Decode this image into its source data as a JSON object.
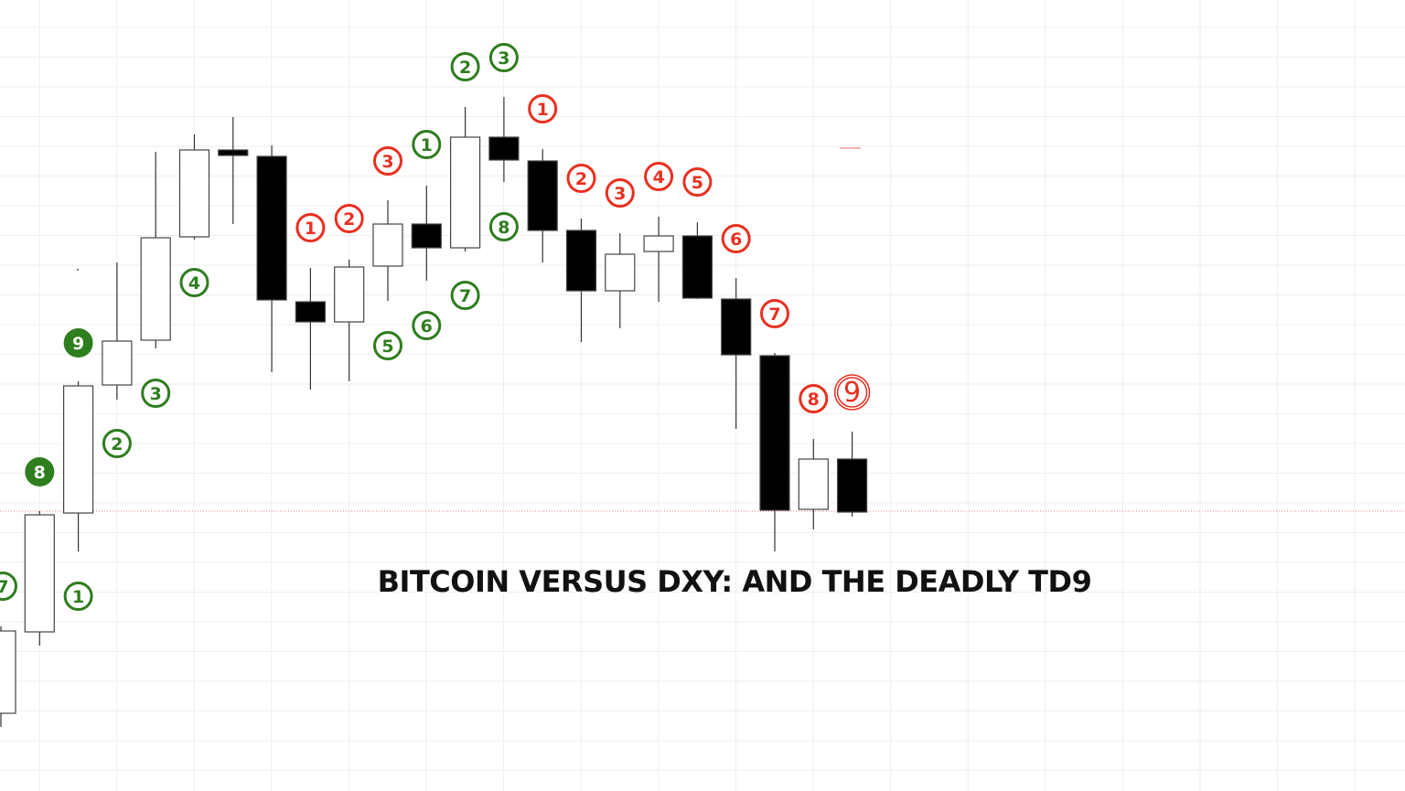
{
  "chart_data": {
    "type": "candlestick",
    "title": "BITCOIN VERSUS DXY: AND THE DEADLY TD9",
    "xlabel": "",
    "ylabel": "",
    "grid": true,
    "axes_visible": false,
    "colors": {
      "up_fill": "#ffffff",
      "down_fill": "#000000",
      "outline": "#444444",
      "buy_setup": "#2e7d1e",
      "sell_setup": "#e8301f",
      "grid": "#eeeeee",
      "reference_line": "#e8301f"
    },
    "reference_line": {
      "style": "dotted",
      "value": 306
    },
    "candles": [
      {
        "open": 85,
        "high": 180,
        "low": 70,
        "close": 175
      },
      {
        "open": 174,
        "high": 306,
        "low": 159,
        "close": 302
      },
      {
        "open": 304,
        "high": 448,
        "low": 262,
        "close": 443
      },
      {
        "open": 444,
        "high": 578,
        "low": 428,
        "close": 492
      },
      {
        "open": 493,
        "high": 699,
        "low": 484,
        "close": 605
      },
      {
        "open": 606,
        "high": 718,
        "low": 603,
        "close": 701
      },
      {
        "open": 701,
        "high": 737,
        "low": 620,
        "close": 695
      },
      {
        "open": 694,
        "high": 706,
        "low": 458,
        "close": 537
      },
      {
        "open": 535,
        "high": 572,
        "low": 439,
        "close": 513
      },
      {
        "open": 513,
        "high": 581,
        "low": 448,
        "close": 573
      },
      {
        "open": 574,
        "high": 646,
        "low": 536,
        "close": 620
      },
      {
        "open": 620,
        "high": 662,
        "low": 558,
        "close": 594
      },
      {
        "open": 594,
        "high": 748,
        "low": 590,
        "close": 715
      },
      {
        "open": 715,
        "high": 759,
        "low": 666,
        "close": 690
      },
      {
        "open": 689,
        "high": 702,
        "low": 578,
        "close": 613
      },
      {
        "open": 613,
        "high": 626,
        "low": 491,
        "close": 547
      },
      {
        "open": 547,
        "high": 610,
        "low": 506,
        "close": 587
      },
      {
        "open": 590,
        "high": 628,
        "low": 535,
        "close": 607
      },
      {
        "open": 607,
        "high": 622,
        "low": 538,
        "close": 539
      },
      {
        "open": 538,
        "high": 561,
        "low": 396,
        "close": 477
      },
      {
        "open": 476,
        "high": 479,
        "low": 262,
        "close": 307
      },
      {
        "open": 308,
        "high": 385,
        "low": 286,
        "close": 363
      },
      {
        "open": 363,
        "high": 393,
        "low": 300,
        "close": 305
      }
    ],
    "td_labels": [
      {
        "candle": 0,
        "text": "7",
        "setup": "buy",
        "filled": false
      },
      {
        "candle": 1,
        "text": "8",
        "setup": "buy",
        "filled": true
      },
      {
        "candle": 2,
        "text": "1",
        "setup": "buy",
        "filled": false
      },
      {
        "candle": 2,
        "text": "9",
        "setup": "buy",
        "filled": true
      },
      {
        "candle": 3,
        "text": "2",
        "setup": "buy",
        "filled": false
      },
      {
        "candle": 4,
        "text": "3",
        "setup": "buy",
        "filled": false
      },
      {
        "candle": 5,
        "text": "4",
        "setup": "buy",
        "filled": false
      },
      {
        "candle": 8,
        "text": "1",
        "setup": "sell",
        "filled": false
      },
      {
        "candle": 9,
        "text": "2",
        "setup": "sell",
        "filled": false
      },
      {
        "candle": 10,
        "text": "3",
        "setup": "sell",
        "filled": false
      },
      {
        "candle": 10,
        "text": "5",
        "setup": "buy",
        "filled": false
      },
      {
        "candle": 11,
        "text": "1",
        "setup": "buy",
        "filled": false
      },
      {
        "candle": 11,
        "text": "6",
        "setup": "buy",
        "filled": false
      },
      {
        "candle": 12,
        "text": "2",
        "setup": "buy",
        "filled": false
      },
      {
        "candle": 12,
        "text": "7",
        "setup": "buy",
        "filled": false
      },
      {
        "candle": 13,
        "text": "3",
        "setup": "buy",
        "filled": false
      },
      {
        "candle": 13,
        "text": "8",
        "setup": "buy",
        "filled": false
      },
      {
        "candle": 14,
        "text": "1",
        "setup": "sell",
        "filled": false
      },
      {
        "candle": 15,
        "text": "2",
        "setup": "sell",
        "filled": false
      },
      {
        "candle": 16,
        "text": "3",
        "setup": "sell",
        "filled": false
      },
      {
        "candle": 17,
        "text": "4",
        "setup": "sell",
        "filled": false
      },
      {
        "candle": 18,
        "text": "5",
        "setup": "sell",
        "filled": false
      },
      {
        "candle": 19,
        "text": "6",
        "setup": "sell",
        "filled": false
      },
      {
        "candle": 20,
        "text": "7",
        "setup": "sell",
        "filled": false
      },
      {
        "candle": 21,
        "text": "8",
        "setup": "sell",
        "filled": false
      },
      {
        "candle": 22,
        "text": "9",
        "setup": "sell",
        "filled": false,
        "double_ring": true
      }
    ]
  }
}
